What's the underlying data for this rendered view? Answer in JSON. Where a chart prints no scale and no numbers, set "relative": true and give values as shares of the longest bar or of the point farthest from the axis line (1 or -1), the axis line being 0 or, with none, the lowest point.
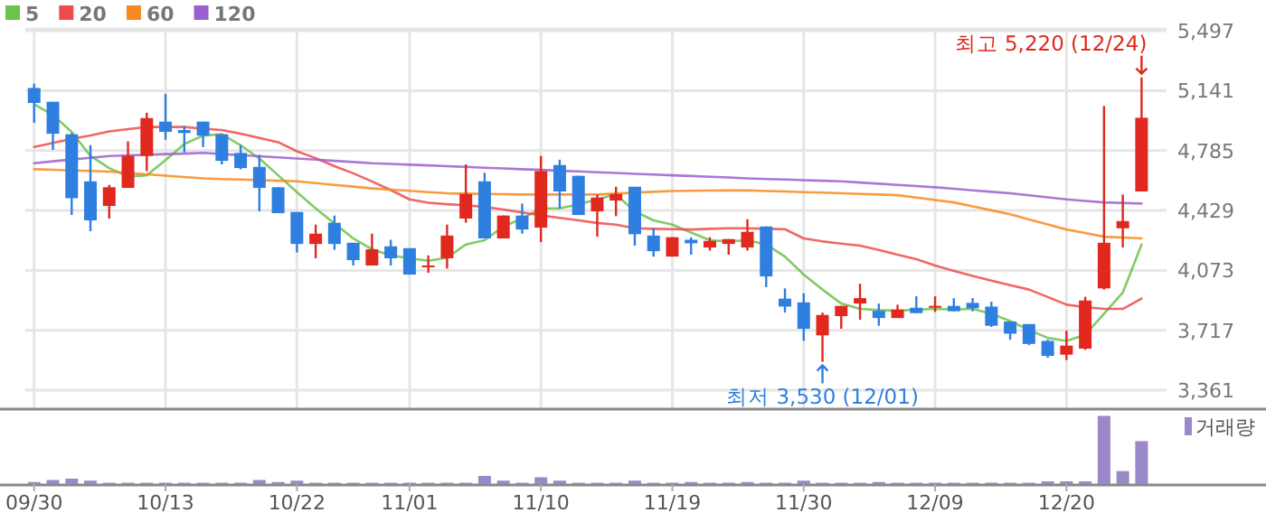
{
  "chart_data": [
    {
      "type": "candlestick",
      "categories": [
        null,
        null,
        null,
        null,
        null,
        null,
        null,
        null,
        null,
        null,
        null,
        null,
        null,
        null,
        null,
        null,
        null,
        null,
        null,
        null,
        null,
        null,
        null,
        null,
        null,
        null,
        null,
        null,
        null,
        null,
        null,
        null,
        null,
        null,
        null,
        null,
        null,
        null,
        null,
        null,
        null,
        null,
        null,
        null,
        null,
        null,
        null,
        null,
        null,
        null,
        null,
        null,
        null,
        null,
        null,
        null,
        null,
        null,
        null,
        null
      ],
      "ohlc": [
        [
          5157,
          5182,
          4950,
          5068
        ],
        [
          5075,
          5075,
          4789,
          4885
        ],
        [
          4882,
          4889,
          4402,
          4502
        ],
        [
          4602,
          4817,
          4306,
          4370
        ],
        [
          4456,
          4581,
          4381,
          4567
        ],
        [
          4563,
          4839,
          4563,
          4753
        ],
        [
          4753,
          5010,
          4663,
          4978
        ],
        [
          4957,
          5121,
          4849,
          4896
        ],
        [
          4907,
          4932,
          4774,
          4889
        ],
        [
          4957,
          4957,
          4806,
          4874
        ],
        [
          4882,
          4882,
          4703,
          4724
        ],
        [
          4771,
          4817,
          4674,
          4681
        ],
        [
          4688,
          4760,
          4424,
          4563
        ],
        [
          4567,
          4567,
          4413,
          4413
        ],
        [
          4420,
          4420,
          4180,
          4230
        ],
        [
          4230,
          4345,
          4145,
          4291
        ],
        [
          4356,
          4399,
          4195,
          4230
        ],
        [
          4237,
          4237,
          4102,
          4134
        ],
        [
          4102,
          4291,
          4102,
          4198
        ],
        [
          4216,
          4255,
          4102,
          4145
        ],
        [
          4205,
          4205,
          4048,
          4048
        ],
        [
          4095,
          4162,
          4059,
          4102
        ],
        [
          4145,
          4345,
          4084,
          4280
        ],
        [
          4381,
          4703,
          4356,
          4527
        ],
        [
          4602,
          4653,
          4263,
          4263
        ],
        [
          4263,
          4399,
          4263,
          4399
        ],
        [
          4399,
          4470,
          4291,
          4316
        ],
        [
          4327,
          4753,
          4241,
          4663
        ],
        [
          4699,
          4731,
          4441,
          4542
        ],
        [
          4635,
          4635,
          4402,
          4402
        ],
        [
          4424,
          4524,
          4273,
          4506
        ],
        [
          4488,
          4570,
          4395,
          4527
        ],
        [
          4570,
          4570,
          4220,
          4288
        ],
        [
          4280,
          4323,
          4155,
          4187
        ],
        [
          4155,
          4270,
          4155,
          4270
        ],
        [
          4255,
          4270,
          4166,
          4234
        ],
        [
          4209,
          4270,
          4191,
          4248
        ],
        [
          4230,
          4259,
          4166,
          4259
        ],
        [
          4209,
          4377,
          4191,
          4302
        ],
        [
          4334,
          4334,
          3973,
          4037
        ],
        [
          3905,
          3966,
          3822,
          3858
        ],
        [
          3883,
          3937,
          3654,
          3726
        ],
        [
          3687,
          3822,
          3530,
          3808
        ],
        [
          3801,
          3862,
          3726,
          3862
        ],
        [
          3876,
          3994,
          3780,
          3908
        ],
        [
          3833,
          3876,
          3744,
          3790
        ],
        [
          3790,
          3869,
          3790,
          3840
        ],
        [
          3851,
          3919,
          3819,
          3819
        ],
        [
          3851,
          3919,
          3826,
          3862
        ],
        [
          3862,
          3908,
          3830,
          3830
        ],
        [
          3880,
          3908,
          3830,
          3848
        ],
        [
          3858,
          3887,
          3737,
          3744
        ],
        [
          3769,
          3769,
          3661,
          3697
        ],
        [
          3754,
          3754,
          3629,
          3636
        ],
        [
          3654,
          3661,
          3554,
          3565
        ],
        [
          3572,
          3715,
          3540,
          3626
        ],
        [
          3608,
          3916,
          3601,
          3894
        ],
        [
          3966,
          5050,
          3959,
          4237
        ],
        [
          4323,
          4524,
          4209,
          4366
        ],
        [
          4542,
          5220,
          4542,
          4980
        ]
      ],
      "series": [
        {
          "name": "5",
          "type": "line",
          "color": "#6cc24a",
          "values": [
            5061,
            4996,
            4896,
            4753,
            4681,
            4631,
            4638,
            4728,
            4824,
            4874,
            4882,
            4817,
            4738,
            4638,
            4538,
            4441,
            4352,
            4263,
            4198,
            4162,
            4145,
            4130,
            4148,
            4227,
            4252,
            4334,
            4381,
            4441,
            4441,
            4466,
            4495,
            4524,
            4424,
            4370,
            4345,
            4298,
            4252,
            4245,
            4252,
            4227,
            4155,
            4048,
            3959,
            3876,
            3844,
            3837,
            3833,
            3840,
            3844,
            3840,
            3844,
            3815,
            3772,
            3719,
            3672,
            3654,
            3690,
            3815,
            3941,
            4227
          ]
        },
        {
          "name": "20",
          "type": "line",
          "color": "#ef4b4b",
          "values": [
            4806,
            4830,
            4855,
            4875,
            4899,
            4912,
            4925,
            4925,
            4925,
            4915,
            4907,
            4885,
            4860,
            4835,
            4781,
            4740,
            4692,
            4650,
            4602,
            4550,
            4495,
            4475,
            4466,
            4460,
            4450,
            4435,
            4417,
            4400,
            4385,
            4370,
            4355,
            4345,
            4323,
            4320,
            4318,
            4316,
            4320,
            4323,
            4323,
            4320,
            4318,
            4263,
            4245,
            4232,
            4220,
            4195,
            4166,
            4140,
            4102,
            4070,
            4040,
            4012,
            3985,
            3959,
            3915,
            3869,
            3855,
            3844,
            3844,
            3905
          ]
        },
        {
          "name": "60",
          "type": "line",
          "color": "#f7891f",
          "values": [
            4674,
            4671,
            4667,
            4664,
            4660,
            4652,
            4644,
            4636,
            4628,
            4620,
            4616,
            4613,
            4609,
            4606,
            4602,
            4592,
            4581,
            4571,
            4560,
            4553,
            4546,
            4538,
            4531,
            4529,
            4527,
            4526,
            4524,
            4524,
            4524,
            4524,
            4524,
            4529,
            4535,
            4540,
            4545,
            4546,
            4547,
            4548,
            4549,
            4545,
            4542,
            4538,
            4535,
            4531,
            4527,
            4524,
            4520,
            4506,
            4491,
            4477,
            4453,
            4430,
            4406,
            4376,
            4346,
            4316,
            4295,
            4273,
            4268,
            4263
          ]
        },
        {
          "name": "120",
          "type": "line",
          "color": "#9c5fcf",
          "values": [
            4710,
            4721,
            4732,
            4742,
            4753,
            4757,
            4760,
            4764,
            4767,
            4771,
            4764,
            4758,
            4751,
            4745,
            4738,
            4731,
            4724,
            4717,
            4710,
            4706,
            4701,
            4697,
            4692,
            4688,
            4683,
            4679,
            4674,
            4670,
            4665,
            4661,
            4656,
            4652,
            4647,
            4643,
            4638,
            4634,
            4629,
            4625,
            4620,
            4616,
            4613,
            4609,
            4606,
            4602,
            4595,
            4588,
            4581,
            4574,
            4567,
            4558,
            4549,
            4540,
            4531,
            4519,
            4507,
            4495,
            4486,
            4477,
            4474,
            4470
          ]
        }
      ],
      "ylim": [
        3254,
        5508
      ],
      "yticks": [
        {
          "value": 3361,
          "label": "3,361"
        },
        {
          "value": 3717,
          "label": "3,717"
        },
        {
          "value": 4073,
          "label": "4,073"
        },
        {
          "value": 4429,
          "label": "4,429"
        },
        {
          "value": 4785,
          "label": "4,785"
        },
        {
          "value": 5141,
          "label": "5,141"
        },
        {
          "value": 5497,
          "label": "5,497"
        }
      ],
      "grid": true,
      "legend": "top left",
      "tick_labels": "y",
      "annotations": [
        "최고 5,220 (12/24)",
        "최저 3,530 (12/01)"
      ]
    },
    {
      "type": "bar",
      "categories": [
        "09/30",
        null,
        null,
        null,
        null,
        null,
        null,
        "10/13",
        null,
        null,
        null,
        null,
        null,
        null,
        "10/22",
        null,
        null,
        null,
        null,
        null,
        "11/01",
        null,
        null,
        null,
        null,
        null,
        null,
        "11/10",
        null,
        null,
        null,
        null,
        null,
        null,
        "11/19",
        null,
        null,
        null,
        null,
        null,
        null,
        "11/30",
        null,
        null,
        null,
        null,
        null,
        null,
        "12/09",
        null,
        null,
        null,
        null,
        null,
        null,
        "12/20",
        null,
        null,
        null,
        null
      ],
      "relative": true,
      "tick_labels": "x",
      "legend": "top right",
      "series": [
        {
          "name": "거래량",
          "color": "#9b88c8",
          "values": [
            0.03,
            0.06,
            0.08,
            0.05,
            0.02,
            0.02,
            0.02,
            0.02,
            0.02,
            0.02,
            0.02,
            0.02,
            0.06,
            0.03,
            0.05,
            0.02,
            0.02,
            0.02,
            0.02,
            0.02,
            0.02,
            0.02,
            0.02,
            0.02,
            0.12,
            0.05,
            0.02,
            0.1,
            0.05,
            0.02,
            0.02,
            0.02,
            0.05,
            0.02,
            0.02,
            0.03,
            0.02,
            0.02,
            0.03,
            0.02,
            0.02,
            0.05,
            0.02,
            0.02,
            0.02,
            0.03,
            0.02,
            0.02,
            0.02,
            0.02,
            0.02,
            0.02,
            0.02,
            0.02,
            0.04,
            0.04,
            0.04,
            1,
            0.19,
            0.63
          ]
        }
      ]
    }
  ]
}
